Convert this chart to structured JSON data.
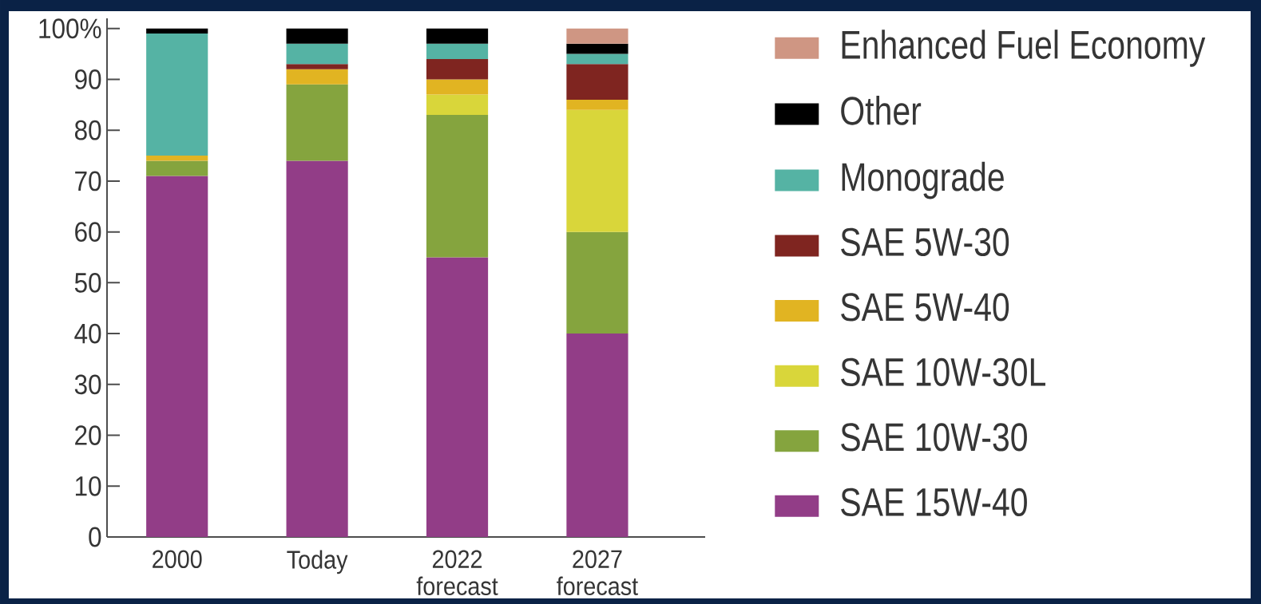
{
  "chart_data": {
    "type": "bar",
    "stacked": true,
    "categories": [
      "2000",
      "Today",
      "2022 forecast",
      "2027 forecast"
    ],
    "series": [
      {
        "name": "SAE 15W-40",
        "color": "#923d87",
        "values": [
          71,
          74,
          55,
          40
        ]
      },
      {
        "name": "SAE 10W-30",
        "color": "#85a43e",
        "values": [
          3,
          15,
          28,
          20
        ]
      },
      {
        "name": "SAE 10W-30L",
        "color": "#d9d63a",
        "values": [
          0,
          0,
          4,
          24
        ]
      },
      {
        "name": "SAE 5W-40",
        "color": "#e1b422",
        "values": [
          1,
          3,
          3,
          2
        ]
      },
      {
        "name": "SAE 5W-30",
        "color": "#7f2520",
        "values": [
          0,
          1,
          4,
          7
        ]
      },
      {
        "name": "Monograde",
        "color": "#55b3a4",
        "values": [
          24,
          4,
          3,
          2
        ]
      },
      {
        "name": "Other",
        "color": "#000000",
        "values": [
          1,
          3,
          3,
          2
        ]
      },
      {
        "name": "Enhanced Fuel Economy",
        "color": "#cf9683",
        "values": [
          0,
          0,
          0,
          3
        ]
      }
    ],
    "ylim": [
      0,
      102
    ],
    "yticks": [
      0,
      10,
      20,
      30,
      40,
      50,
      60,
      70,
      80,
      90,
      {
        "value": 100,
        "label": "100%"
      }
    ],
    "legend": "right"
  }
}
